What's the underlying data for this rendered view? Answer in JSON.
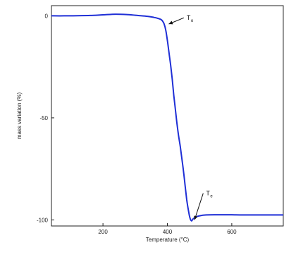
{
  "chart_data": {
    "type": "line",
    "title": "",
    "xlabel": "Temperature (°C)",
    "ylabel": "mass variation (%)",
    "xlim": [
      40,
      760
    ],
    "ylim": [
      -103,
      5
    ],
    "xticks": [
      200,
      400,
      600
    ],
    "yticks": [
      0,
      -50,
      -100
    ],
    "grid": false,
    "color": "#1f2fd6",
    "series": [
      {
        "x": [
          40,
          80,
          120,
          160,
          200,
          240,
          280,
          300,
          320,
          340,
          360,
          370,
          380,
          385,
          390,
          395,
          400,
          405,
          410,
          415,
          420,
          425,
          430,
          435,
          440,
          445,
          450,
          455,
          460,
          465,
          470,
          475,
          480,
          490,
          500,
          520,
          560,
          600,
          650,
          700,
          760
        ],
        "y": [
          0,
          0,
          0.1,
          0.2,
          0.5,
          0.8,
          0.6,
          0.3,
          0,
          -0.3,
          -0.8,
          -1.2,
          -1.8,
          -2.5,
          -4,
          -7,
          -12,
          -18,
          -24,
          -31,
          -39,
          -46,
          -53,
          -59,
          -64,
          -70,
          -76,
          -83,
          -90,
          -95,
          -99,
          -100.5,
          -99.5,
          -98.5,
          -98,
          -97.6,
          -97.5,
          -97.5,
          -97.6,
          -97.6,
          -97.6
        ]
      }
    ],
    "annotations": [
      {
        "label": "T",
        "sub": "o",
        "target_x": 400,
        "target_y": -4,
        "text_x": 460,
        "text_y": -2
      },
      {
        "label": "T",
        "sub": "e",
        "target_x": 480,
        "target_y": -100,
        "text_x": 520,
        "text_y": -88
      }
    ]
  }
}
